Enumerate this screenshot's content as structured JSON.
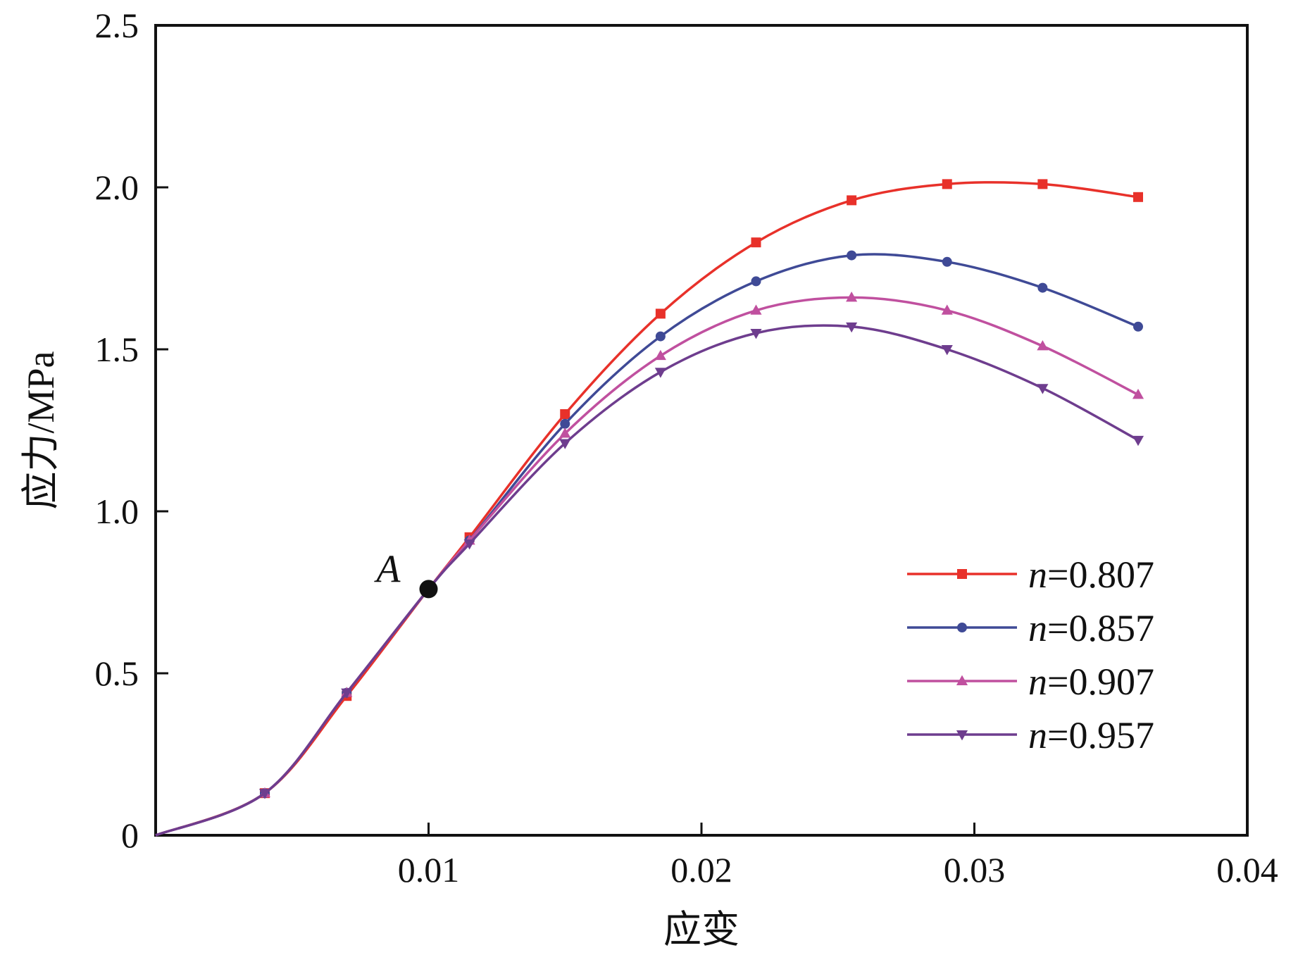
{
  "chart_data": {
    "type": "line",
    "title": "",
    "xlabel": "应变",
    "ylabel": "应力/MPa",
    "xlim": [
      0,
      0.04
    ],
    "ylim": [
      0,
      2.5
    ],
    "x_ticks": [
      0.01,
      0.02,
      0.03,
      0.04
    ],
    "x_tick_labels": [
      "0.01",
      "0.02",
      "0.03",
      "0.04"
    ],
    "y_ticks": [
      0,
      0.5,
      1.0,
      1.5,
      2.0,
      2.5
    ],
    "y_tick_labels": [
      "0",
      "0.5",
      "1.0",
      "1.5",
      "2.0",
      "2.5"
    ],
    "grid": false,
    "legend_position": "bottom-right",
    "x": [
      0,
      0.004,
      0.007,
      0.01,
      0.0115,
      0.015,
      0.0185,
      0.022,
      0.0255,
      0.029,
      0.0325,
      0.036
    ],
    "series": [
      {
        "name": "n=0.807",
        "name_italic": "n",
        "name_rest": "=0.807",
        "color": "#e8312a",
        "marker": "square",
        "values": [
          0,
          0.13,
          0.43,
          0.76,
          0.92,
          1.3,
          1.61,
          1.83,
          1.96,
          2.01,
          2.01,
          1.97
        ]
      },
      {
        "name": "n=0.857",
        "name_italic": "n",
        "name_rest": "=0.857",
        "color": "#3f4a96",
        "marker": "circle",
        "values": [
          0,
          0.13,
          0.44,
          0.76,
          0.91,
          1.27,
          1.54,
          1.71,
          1.79,
          1.77,
          1.69,
          1.57
        ]
      },
      {
        "name": "n=0.907",
        "name_italic": "n",
        "name_rest": "=0.907",
        "color": "#c0509f",
        "marker": "triangle-up",
        "values": [
          0,
          0.13,
          0.44,
          0.76,
          0.91,
          1.24,
          1.48,
          1.62,
          1.66,
          1.62,
          1.51,
          1.36
        ]
      },
      {
        "name": "n=0.957",
        "name_italic": "n",
        "name_rest": "=0.957",
        "color": "#6e3d8e",
        "marker": "triangle-down",
        "values": [
          0,
          0.13,
          0.44,
          0.76,
          0.9,
          1.21,
          1.43,
          1.55,
          1.57,
          1.5,
          1.38,
          1.22
        ]
      }
    ],
    "annotations": [
      {
        "label": "A",
        "x": 0.01,
        "y": 0.76,
        "color": "#111111"
      }
    ]
  }
}
